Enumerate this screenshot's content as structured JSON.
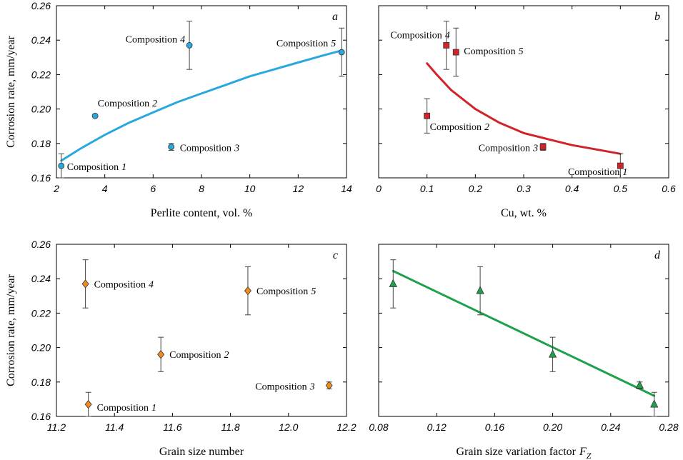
{
  "chart_data": [
    {
      "type": "scatter",
      "panel_label": "a",
      "xlabel": "Perlite content, vol. %",
      "ylabel": "Corrosion rate, mm/year",
      "xlim": [
        2,
        14
      ],
      "ylim": [
        0.16,
        0.26
      ],
      "xticks": [
        "2",
        "4",
        "6",
        "8",
        "10",
        "12",
        "14"
      ],
      "yticks": [
        "0.16",
        "0.18",
        "0.20",
        "0.22",
        "0.24",
        "0.26"
      ],
      "marker": "circle",
      "marker_color": "#29a8e0",
      "points": [
        {
          "x": 2.2,
          "y": 0.167,
          "err": 0.007,
          "label_prefix": "Composition",
          "label_num": "1"
        },
        {
          "x": 3.6,
          "y": 0.196,
          "err": 0,
          "label_prefix": "Composition",
          "label_num": "2"
        },
        {
          "x": 6.75,
          "y": 0.178,
          "err": 0.002,
          "label_prefix": "Composition",
          "label_num": "3"
        },
        {
          "x": 7.5,
          "y": 0.237,
          "err": 0.014,
          "label_prefix": "Composition",
          "label_num": "4"
        },
        {
          "x": 13.8,
          "y": 0.233,
          "err": 0.014,
          "label_prefix": "Composition",
          "label_num": "5"
        }
      ],
      "fit": {
        "color": "#29a8e0",
        "x": [
          2.2,
          3,
          4,
          5,
          6,
          7,
          8,
          9,
          10,
          11,
          12,
          13,
          13.8
        ],
        "y": [
          0.17,
          0.177,
          0.185,
          0.192,
          0.198,
          0.204,
          0.209,
          0.214,
          0.219,
          0.223,
          0.227,
          0.231,
          0.234
        ]
      }
    },
    {
      "type": "scatter",
      "panel_label": "b",
      "xlabel": "Cu, wt. %",
      "ylabel": "",
      "xlim": [
        0,
        0.6
      ],
      "ylim": [
        0.16,
        0.26
      ],
      "xticks": [
        "0",
        "0.1",
        "0.2",
        "0.3",
        "0.4",
        "0.5",
        "0.6"
      ],
      "yticks": [],
      "marker": "square",
      "marker_color": "#d2232a",
      "points": [
        {
          "x": 0.5,
          "y": 0.167,
          "err": 0.007,
          "label_prefix": "Composition",
          "label_num": "1"
        },
        {
          "x": 0.1,
          "y": 0.196,
          "err": 0.01,
          "label_prefix": "Composition",
          "label_num": "2"
        },
        {
          "x": 0.34,
          "y": 0.178,
          "err": 0.002,
          "label_prefix": "Composition",
          "label_num": "3"
        },
        {
          "x": 0.14,
          "y": 0.237,
          "err": 0.014,
          "label_prefix": "Composition",
          "label_num": "4"
        },
        {
          "x": 0.16,
          "y": 0.233,
          "err": 0.014,
          "label_prefix": "Composition",
          "label_num": "5"
        }
      ],
      "fit": {
        "color": "#d2232a",
        "x": [
          0.1,
          0.12,
          0.15,
          0.2,
          0.25,
          0.3,
          0.35,
          0.4,
          0.45,
          0.5
        ],
        "y": [
          0.2265,
          0.22,
          0.211,
          0.2,
          0.192,
          0.186,
          0.1825,
          0.179,
          0.1765,
          0.174
        ]
      }
    },
    {
      "type": "scatter",
      "panel_label": "c",
      "xlabel": "Grain size number",
      "ylabel": "Corrosion rate, mm/year",
      "xlim": [
        11.2,
        12.2
      ],
      "ylim": [
        0.16,
        0.26
      ],
      "xticks": [
        "11.2",
        "11.4",
        "11.6",
        "11.8",
        "12.0",
        "12.2"
      ],
      "yticks": [
        "0.16",
        "0.18",
        "0.20",
        "0.22",
        "0.24",
        "0.26"
      ],
      "marker": "diamond",
      "marker_color": "#f08c1e",
      "points": [
        {
          "x": 11.31,
          "y": 0.167,
          "err": 0.007,
          "label_prefix": "Composition",
          "label_num": "1"
        },
        {
          "x": 11.56,
          "y": 0.196,
          "err": 0.01,
          "label_prefix": "Composition",
          "label_num": "2"
        },
        {
          "x": 12.14,
          "y": 0.178,
          "err": 0.002,
          "label_prefix": "Composition",
          "label_num": "3"
        },
        {
          "x": 11.3,
          "y": 0.237,
          "err": 0.014,
          "label_prefix": "Composition",
          "label_num": "4"
        },
        {
          "x": 11.86,
          "y": 0.233,
          "err": 0.014,
          "label_prefix": "Composition",
          "label_num": "5"
        }
      ]
    },
    {
      "type": "scatter",
      "panel_label": "d",
      "xlabel": "Grain size variation factor",
      "xlabel_symbol": "F",
      "xlabel_subscript": "Z",
      "ylabel": "",
      "xlim": [
        0.08,
        0.28
      ],
      "ylim": [
        0.16,
        0.26
      ],
      "xticks": [
        "0.08",
        "0.12",
        "0.16",
        "0.20",
        "0.24",
        "0.28"
      ],
      "yticks": [],
      "marker": "triangle",
      "marker_color": "#1fa04a",
      "points": [
        {
          "x": 0.09,
          "y": 0.237,
          "err": 0.014
        },
        {
          "x": 0.15,
          "y": 0.233,
          "err": 0.014
        },
        {
          "x": 0.2,
          "y": 0.196,
          "err": 0.01
        },
        {
          "x": 0.26,
          "y": 0.178,
          "err": 0.002
        },
        {
          "x": 0.27,
          "y": 0.167,
          "err": 0.007
        }
      ],
      "fit": {
        "color": "#1fa04a",
        "x": [
          0.09,
          0.27
        ],
        "y": [
          0.2445,
          0.172
        ]
      }
    }
  ]
}
